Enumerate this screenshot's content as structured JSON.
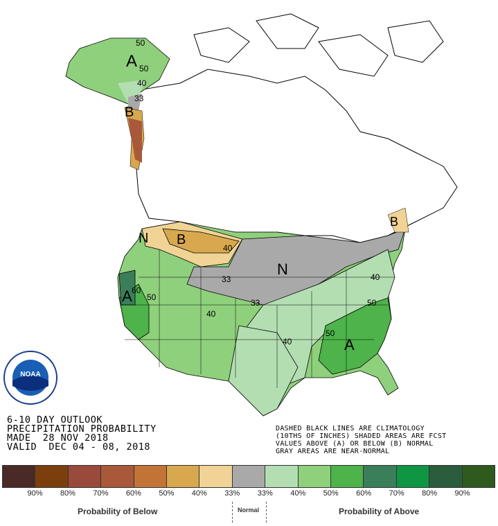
{
  "header": {
    "line1": "6-10 DAY OUTLOOK",
    "line2": "PRECIPITATION PROBABILITY",
    "line3": "MADE  28 NOV 2018",
    "line4": "VALID  DEC 04 - 08, 2018"
  },
  "notes": {
    "line1": "DASHED BLACK LINES ARE CLIMATOLOGY",
    "line2": "(10THS OF INCHES) SHADED AREAS ARE FCST",
    "line3": "VALUES ABOVE (A) OR BELOW (B) NORMAL",
    "line4": "GRAY AREAS ARE NEAR-NORMAL"
  },
  "logo": {
    "text": "NOAA",
    "ring_text": "NATIONAL OCEANIC AND ATMOSPHERIC ADMINISTRATION · U.S. DEPARTMENT OF COMMERCE"
  },
  "legend": {
    "colors": [
      "#4a2a26",
      "#7b3f0e",
      "#9a4a3a",
      "#a9593a",
      "#c27437",
      "#d8a84f",
      "#f0d395",
      "#a9a9a9",
      "#b3deb2",
      "#8fd07c",
      "#4db34a",
      "#3a7e5a",
      "#0f9642",
      "#2a5d3b",
      "#2e5a1e"
    ],
    "labels": [
      "90%",
      "80%",
      "70%",
      "60%",
      "50%",
      "40%",
      "33%",
      "33%",
      "40%",
      "50%",
      "60%",
      "70%",
      "80%",
      "90%"
    ],
    "below_caption": "Probability of Below",
    "normal_caption": "Normal",
    "above_caption": "Probability of Above"
  },
  "map_labels": {
    "alaska_A": "A",
    "alaska_50a": "50",
    "alaska_50b": "50",
    "alaska_40": "40",
    "alaska_33": "33",
    "alaska_B": "B",
    "nw_N": "N",
    "nw_B": "B",
    "n_40": "40",
    "n_33": "33",
    "mid_N": "N",
    "ne_B": "B",
    "w_A": "A",
    "w_60": "60",
    "w_50": "50",
    "c_40": "40",
    "c_33": "33",
    "s_40": "40",
    "se_A": "A",
    "se_50a": "50",
    "se_50b": "50",
    "e_40": "40"
  }
}
